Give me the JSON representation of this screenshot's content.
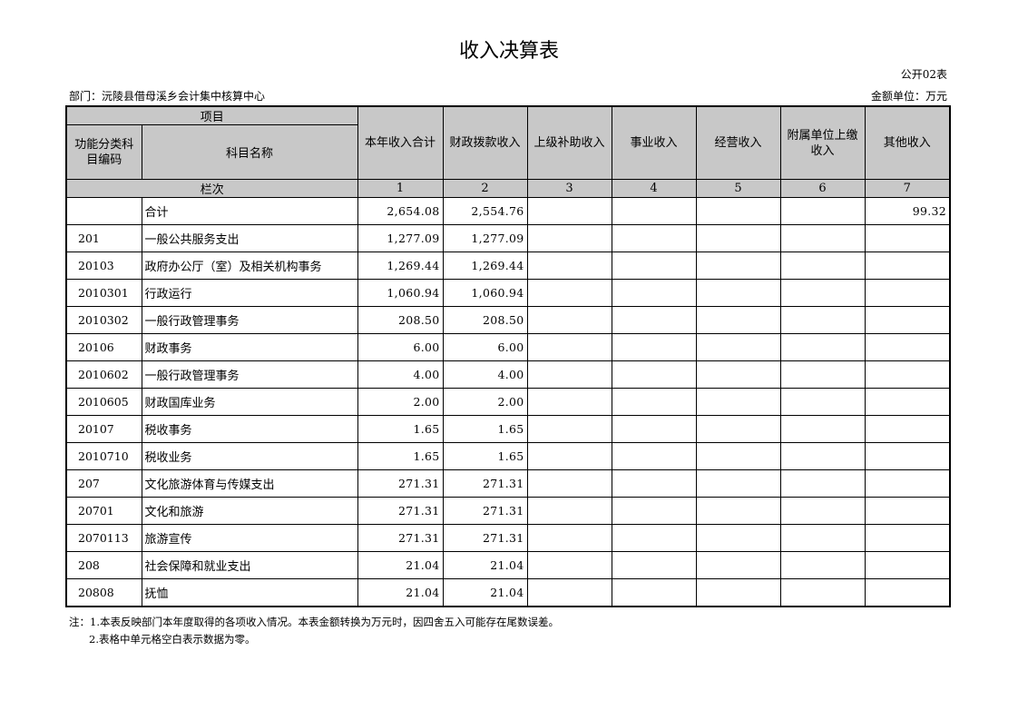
{
  "title": "收入决算表",
  "form_no": "公开02表",
  "department": "部门：沅陵县借母溪乡会计集中核算中心",
  "unit": "金额单位：万元",
  "headers": {
    "item": "项目",
    "code": "功能分类科目编码",
    "name": "科目名称",
    "cols": [
      "本年收入合计",
      "财政拨款收入",
      "上级补助收入",
      "事业收入",
      "经营收入",
      "附属单位上缴收入",
      "其他收入"
    ],
    "seq_label": "栏次",
    "seq": [
      "1",
      "2",
      "3",
      "4",
      "5",
      "6",
      "7"
    ]
  },
  "rows": [
    {
      "code": "",
      "name": "合计",
      "v": [
        "2,654.08",
        "2,554.76",
        "",
        "",
        "",
        "",
        "99.32"
      ]
    },
    {
      "code": "201",
      "name": "一般公共服务支出",
      "v": [
        "1,277.09",
        "1,277.09",
        "",
        "",
        "",
        "",
        ""
      ]
    },
    {
      "code": "20103",
      "name": "政府办公厅（室）及相关机构事务",
      "v": [
        "1,269.44",
        "1,269.44",
        "",
        "",
        "",
        "",
        ""
      ]
    },
    {
      "code": "2010301",
      "name": "行政运行",
      "v": [
        "1,060.94",
        "1,060.94",
        "",
        "",
        "",
        "",
        ""
      ]
    },
    {
      "code": "2010302",
      "name": "一般行政管理事务",
      "v": [
        "208.50",
        "208.50",
        "",
        "",
        "",
        "",
        ""
      ]
    },
    {
      "code": "20106",
      "name": "财政事务",
      "v": [
        "6.00",
        "6.00",
        "",
        "",
        "",
        "",
        ""
      ]
    },
    {
      "code": "2010602",
      "name": "一般行政管理事务",
      "v": [
        "4.00",
        "4.00",
        "",
        "",
        "",
        "",
        ""
      ]
    },
    {
      "code": "2010605",
      "name": "财政国库业务",
      "v": [
        "2.00",
        "2.00",
        "",
        "",
        "",
        "",
        ""
      ]
    },
    {
      "code": "20107",
      "name": "税收事务",
      "v": [
        "1.65",
        "1.65",
        "",
        "",
        "",
        "",
        ""
      ]
    },
    {
      "code": "2010710",
      "name": "税收业务",
      "v": [
        "1.65",
        "1.65",
        "",
        "",
        "",
        "",
        ""
      ]
    },
    {
      "code": "207",
      "name": "文化旅游体育与传媒支出",
      "v": [
        "271.31",
        "271.31",
        "",
        "",
        "",
        "",
        ""
      ]
    },
    {
      "code": "20701",
      "name": "文化和旅游",
      "v": [
        "271.31",
        "271.31",
        "",
        "",
        "",
        "",
        ""
      ]
    },
    {
      "code": "2070113",
      "name": "旅游宣传",
      "v": [
        "271.31",
        "271.31",
        "",
        "",
        "",
        "",
        ""
      ]
    },
    {
      "code": "208",
      "name": "社会保障和就业支出",
      "v": [
        "21.04",
        "21.04",
        "",
        "",
        "",
        "",
        ""
      ]
    },
    {
      "code": "20808",
      "name": "抚恤",
      "v": [
        "21.04",
        "21.04",
        "",
        "",
        "",
        "",
        ""
      ]
    }
  ],
  "notes": [
    "注：1.本表反映部门本年度取得的各项收入情况。本表金额转换为万元时，因四舍五入可能存在尾数误差。",
    "2.表格中单元格空白表示数据为零。"
  ]
}
